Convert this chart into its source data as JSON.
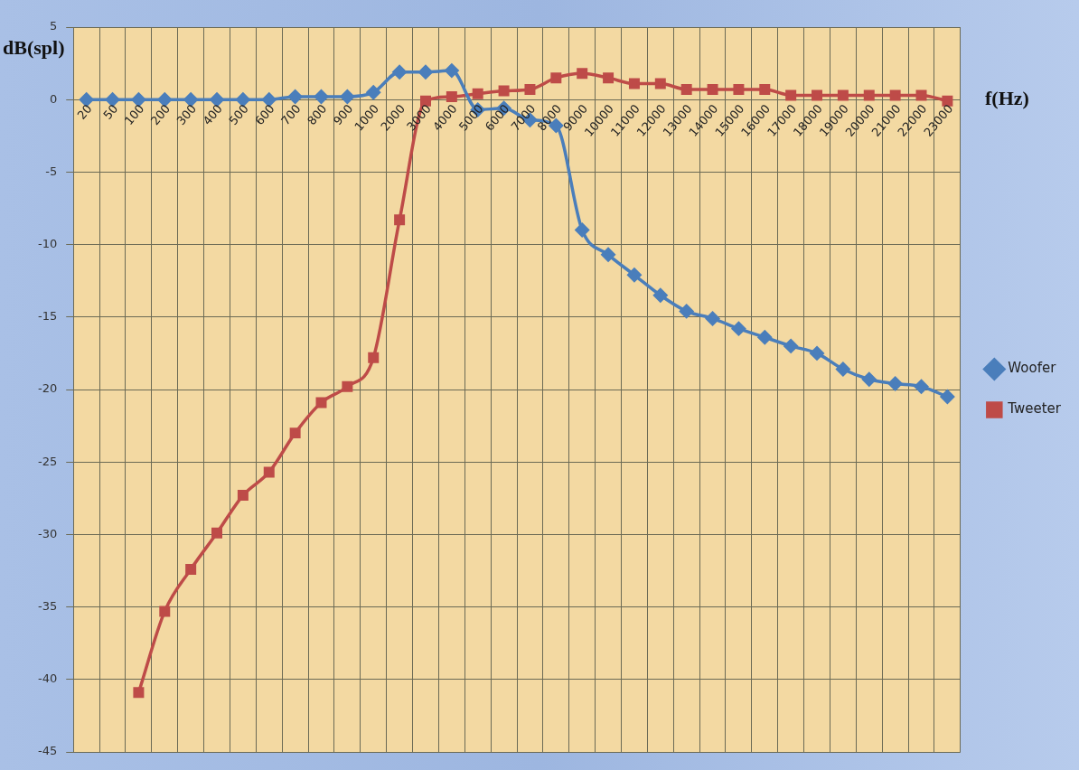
{
  "chart_data": {
    "type": "line",
    "xlabel": "f(Hz)",
    "ylabel": "dB(spl)",
    "categories": [
      "20",
      "50",
      "100",
      "200",
      "300",
      "400",
      "500",
      "600",
      "700",
      "800",
      "900",
      "1000",
      "2000",
      "3000",
      "4000",
      "5000",
      "6000",
      "7000",
      "8000",
      "9000",
      "10000",
      "11000",
      "12000",
      "13000",
      "14000",
      "15000",
      "16000",
      "17000",
      "18000",
      "19000",
      "20000",
      "21000",
      "22000",
      "23000"
    ],
    "series": [
      {
        "name": "Woofer",
        "color": "#4a7ebb",
        "marker": "diamond",
        "values": [
          0,
          0,
          0,
          0,
          0,
          0,
          0,
          0,
          0.2,
          0.2,
          0.2,
          0.5,
          1.9,
          1.9,
          2.0,
          -0.7,
          -0.6,
          -1.4,
          -1.8,
          -9.0,
          -10.7,
          -12.1,
          -13.5,
          -14.6,
          -15.1,
          -15.8,
          -16.4,
          -17.0,
          -17.5,
          -18.6,
          -19.3,
          -19.6,
          -19.8,
          -20.5
        ]
      },
      {
        "name": "Tweeter",
        "color": "#be4b48",
        "marker": "square",
        "values": [
          null,
          null,
          -40.9,
          -35.3,
          -32.4,
          -29.9,
          -27.3,
          -25.7,
          -23.0,
          -20.9,
          -19.8,
          -17.8,
          -8.3,
          -0.1,
          0.2,
          0.4,
          0.6,
          0.7,
          1.5,
          1.8,
          1.5,
          1.1,
          1.1,
          0.7,
          0.7,
          0.7,
          0.7,
          0.3,
          0.3,
          0.3,
          0.3,
          0.3,
          0.3,
          -0.1
        ]
      }
    ],
    "ylim": [
      -45,
      5
    ],
    "yticks": [
      -45,
      -40,
      -35,
      -30,
      -25,
      -20,
      -15,
      -10,
      -5,
      0,
      5
    ],
    "grid": true,
    "legend": "right"
  }
}
